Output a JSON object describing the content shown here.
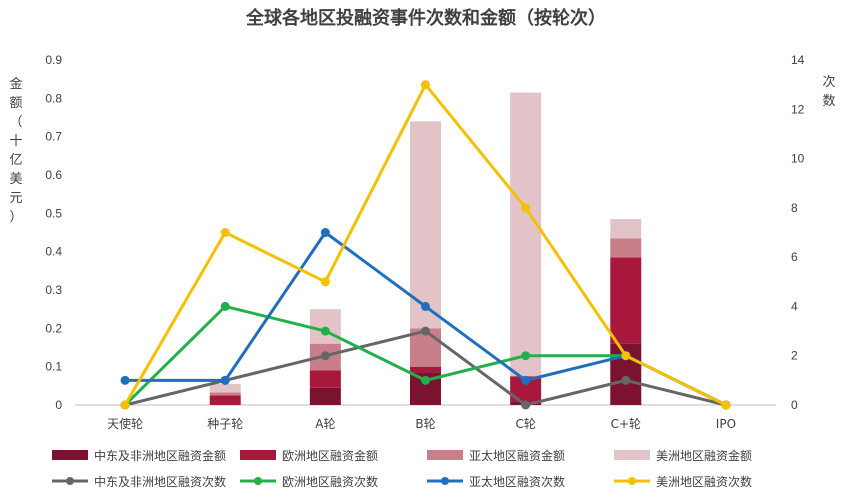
{
  "chart_data": {
    "type": "bar",
    "title": "全球各地区投融资事件次数和金额（按轮次）",
    "ylabel": "金额（十亿美元）",
    "y2label": "次数",
    "categories": [
      "天使轮",
      "种子轮",
      "A轮",
      "B轮",
      "C轮",
      "C+轮",
      "IPO"
    ],
    "ylim": [
      0,
      0.9
    ],
    "yticks": [
      "0",
      "0.1",
      "0.2",
      "0.3",
      "0.4",
      "0.5",
      "0.6",
      "0.7",
      "0.8",
      "0.9"
    ],
    "y2lim": [
      0,
      14
    ],
    "y2ticks": [
      "0",
      "2",
      "4",
      "6",
      "8",
      "10",
      "12",
      "14"
    ],
    "bar_series": [
      {
        "name": "中东及非洲地区融资金额",
        "color": "#7b1230",
        "values": [
          0,
          0,
          0.045,
          0.085,
          0.01,
          0.16,
          0
        ]
      },
      {
        "name": "欧洲地区融资金额",
        "color": "#a8183c",
        "values": [
          0,
          0.025,
          0.045,
          0.015,
          0.065,
          0.225,
          0
        ]
      },
      {
        "name": "亚太地区融资金额",
        "color": "#c97f8a",
        "values": [
          0,
          0.008,
          0.07,
          0.1,
          0,
          0.05,
          0
        ]
      },
      {
        "name": "美洲地区融资金额",
        "color": "#e2c4c8",
        "values": [
          0,
          0.022,
          0.09,
          0.54,
          0.74,
          0.05,
          0
        ]
      }
    ],
    "line_series": [
      {
        "name": "中东及非洲地区融资次数",
        "color": "#666666",
        "values": [
          0,
          1,
          2,
          3,
          0,
          1,
          0
        ]
      },
      {
        "name": "欧洲地区融资次数",
        "color": "#22b04b",
        "values": [
          0,
          4,
          3,
          1,
          2,
          2,
          0
        ]
      },
      {
        "name": "亚太地区融资次数",
        "color": "#1f6fbf",
        "values": [
          1,
          1,
          7,
          4,
          1,
          2,
          0
        ]
      },
      {
        "name": "美洲地区融资次数",
        "color": "#f5c000",
        "values": [
          0,
          7,
          5,
          13,
          8,
          2,
          0
        ]
      }
    ],
    "legend": "bottom",
    "grid": false
  }
}
